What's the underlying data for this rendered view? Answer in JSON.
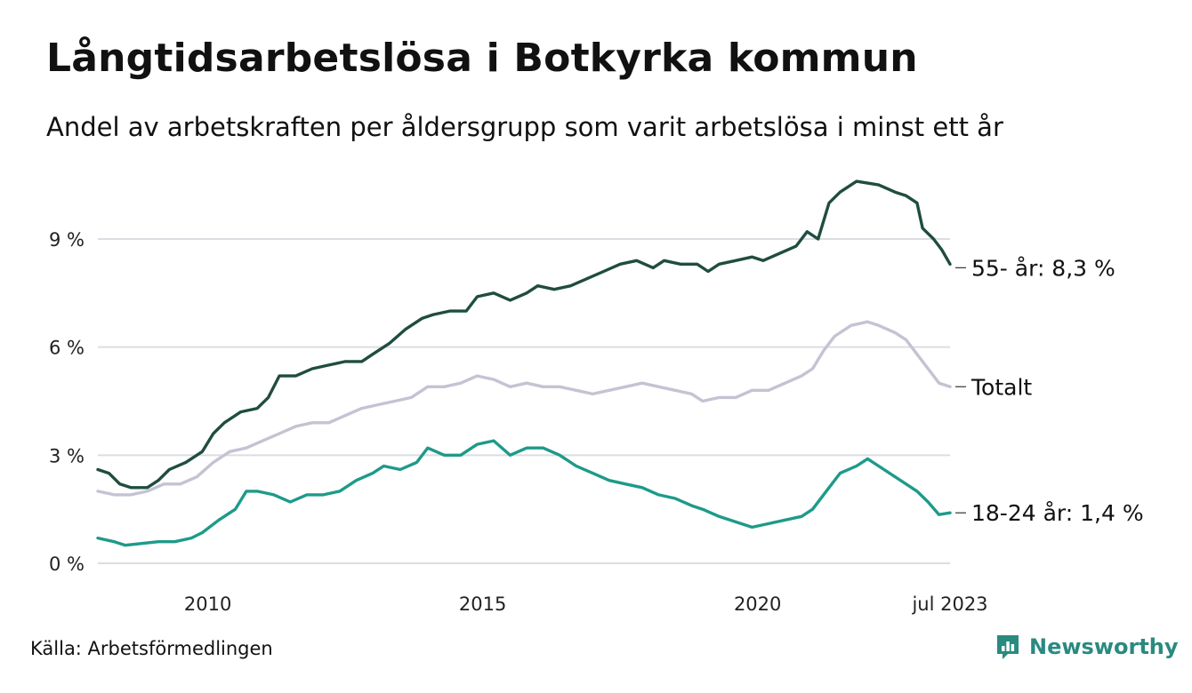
{
  "header": {
    "title": "Långtidsarbetslösa i Botkyrka kommun",
    "subtitle": "Andel av arbetskraften per åldersgrupp som varit arbetslösa i minst ett år"
  },
  "footer": {
    "source": "Källa: Arbetsförmedlingen",
    "brand": "Newsworthy",
    "brand_color": "#2a8a80"
  },
  "chart_data": {
    "type": "line",
    "x_ticks": [
      {
        "x": 2010,
        "label": "2010"
      },
      {
        "x": 2015,
        "label": "2015"
      },
      {
        "x": 2020,
        "label": "2020"
      },
      {
        "x": 2023.5,
        "label": "jul 2023"
      }
    ],
    "y_ticks": [
      {
        "y": 0,
        "label": "0 %"
      },
      {
        "y": 3,
        "label": "3 %"
      },
      {
        "y": 6,
        "label": "6 %"
      },
      {
        "y": 9,
        "label": "9 %"
      }
    ],
    "xlim": [
      2008.0,
      2023.5
    ],
    "ylim": [
      0,
      10.7
    ],
    "grid": true,
    "series": [
      {
        "name": "55- år",
        "end_label": "55- år: 8,3 %",
        "color": "#1f4d3f",
        "points": [
          [
            2008.0,
            2.6
          ],
          [
            2008.2,
            2.5
          ],
          [
            2008.4,
            2.2
          ],
          [
            2008.6,
            2.1
          ],
          [
            2008.9,
            2.1
          ],
          [
            2009.1,
            2.3
          ],
          [
            2009.3,
            2.6
          ],
          [
            2009.6,
            2.8
          ],
          [
            2009.9,
            3.1
          ],
          [
            2010.1,
            3.6
          ],
          [
            2010.3,
            3.9
          ],
          [
            2010.6,
            4.2
          ],
          [
            2010.9,
            4.3
          ],
          [
            2011.1,
            4.6
          ],
          [
            2011.3,
            5.2
          ],
          [
            2011.6,
            5.2
          ],
          [
            2011.9,
            5.4
          ],
          [
            2012.2,
            5.5
          ],
          [
            2012.5,
            5.6
          ],
          [
            2012.8,
            5.6
          ],
          [
            2013.0,
            5.8
          ],
          [
            2013.3,
            6.1
          ],
          [
            2013.6,
            6.5
          ],
          [
            2013.9,
            6.8
          ],
          [
            2014.1,
            6.9
          ],
          [
            2014.4,
            7.0
          ],
          [
            2014.7,
            7.0
          ],
          [
            2014.9,
            7.4
          ],
          [
            2015.2,
            7.5
          ],
          [
            2015.5,
            7.3
          ],
          [
            2015.8,
            7.5
          ],
          [
            2016.0,
            7.7
          ],
          [
            2016.3,
            7.6
          ],
          [
            2016.6,
            7.7
          ],
          [
            2016.9,
            7.9
          ],
          [
            2017.2,
            8.1
          ],
          [
            2017.5,
            8.3
          ],
          [
            2017.8,
            8.4
          ],
          [
            2018.1,
            8.2
          ],
          [
            2018.3,
            8.4
          ],
          [
            2018.6,
            8.3
          ],
          [
            2018.9,
            8.3
          ],
          [
            2019.1,
            8.1
          ],
          [
            2019.3,
            8.3
          ],
          [
            2019.6,
            8.4
          ],
          [
            2019.9,
            8.5
          ],
          [
            2020.1,
            8.4
          ],
          [
            2020.4,
            8.6
          ],
          [
            2020.7,
            8.8
          ],
          [
            2020.9,
            9.2
          ],
          [
            2021.1,
            9.0
          ],
          [
            2021.3,
            10.0
          ],
          [
            2021.5,
            10.3
          ],
          [
            2021.8,
            10.6
          ],
          [
            2022.0,
            10.55
          ],
          [
            2022.2,
            10.5
          ],
          [
            2022.5,
            10.3
          ],
          [
            2022.7,
            10.2
          ],
          [
            2022.9,
            10.0
          ],
          [
            2023.0,
            9.3
          ],
          [
            2023.2,
            9.0
          ],
          [
            2023.35,
            8.7
          ],
          [
            2023.5,
            8.3
          ]
        ]
      },
      {
        "name": "Totalt",
        "end_label": "Totalt",
        "color": "#c3c3d3",
        "points": [
          [
            2008.0,
            2.0
          ],
          [
            2008.3,
            1.9
          ],
          [
            2008.6,
            1.9
          ],
          [
            2008.9,
            2.0
          ],
          [
            2009.2,
            2.2
          ],
          [
            2009.5,
            2.2
          ],
          [
            2009.8,
            2.4
          ],
          [
            2010.1,
            2.8
          ],
          [
            2010.4,
            3.1
          ],
          [
            2010.7,
            3.2
          ],
          [
            2011.0,
            3.4
          ],
          [
            2011.3,
            3.6
          ],
          [
            2011.6,
            3.8
          ],
          [
            2011.9,
            3.9
          ],
          [
            2012.2,
            3.9
          ],
          [
            2012.5,
            4.1
          ],
          [
            2012.8,
            4.3
          ],
          [
            2013.1,
            4.4
          ],
          [
            2013.4,
            4.5
          ],
          [
            2013.7,
            4.6
          ],
          [
            2014.0,
            4.9
          ],
          [
            2014.3,
            4.9
          ],
          [
            2014.6,
            5.0
          ],
          [
            2014.9,
            5.2
          ],
          [
            2015.2,
            5.1
          ],
          [
            2015.5,
            4.9
          ],
          [
            2015.8,
            5.0
          ],
          [
            2016.1,
            4.9
          ],
          [
            2016.4,
            4.9
          ],
          [
            2016.7,
            4.8
          ],
          [
            2017.0,
            4.7
          ],
          [
            2017.3,
            4.8
          ],
          [
            2017.6,
            4.9
          ],
          [
            2017.9,
            5.0
          ],
          [
            2018.2,
            4.9
          ],
          [
            2018.5,
            4.8
          ],
          [
            2018.8,
            4.7
          ],
          [
            2019.0,
            4.5
          ],
          [
            2019.3,
            4.6
          ],
          [
            2019.6,
            4.6
          ],
          [
            2019.9,
            4.8
          ],
          [
            2020.2,
            4.8
          ],
          [
            2020.5,
            5.0
          ],
          [
            2020.8,
            5.2
          ],
          [
            2021.0,
            5.4
          ],
          [
            2021.2,
            5.9
          ],
          [
            2021.4,
            6.3
          ],
          [
            2021.7,
            6.6
          ],
          [
            2022.0,
            6.7
          ],
          [
            2022.2,
            6.6
          ],
          [
            2022.5,
            6.4
          ],
          [
            2022.7,
            6.2
          ],
          [
            2022.9,
            5.8
          ],
          [
            2023.1,
            5.4
          ],
          [
            2023.3,
            5.0
          ],
          [
            2023.5,
            4.9
          ]
        ]
      },
      {
        "name": "18-24 år",
        "end_label": "18-24 år: 1,4 %",
        "color": "#1e9a89",
        "points": [
          [
            2008.0,
            0.7
          ],
          [
            2008.3,
            0.6
          ],
          [
            2008.5,
            0.5
          ],
          [
            2008.8,
            0.55
          ],
          [
            2009.1,
            0.6
          ],
          [
            2009.4,
            0.6
          ],
          [
            2009.7,
            0.7
          ],
          [
            2009.9,
            0.85
          ],
          [
            2010.2,
            1.2
          ],
          [
            2010.5,
            1.5
          ],
          [
            2010.7,
            2.0
          ],
          [
            2010.9,
            2.0
          ],
          [
            2011.2,
            1.9
          ],
          [
            2011.5,
            1.7
          ],
          [
            2011.8,
            1.9
          ],
          [
            2012.1,
            1.9
          ],
          [
            2012.4,
            2.0
          ],
          [
            2012.7,
            2.3
          ],
          [
            2013.0,
            2.5
          ],
          [
            2013.2,
            2.7
          ],
          [
            2013.5,
            2.6
          ],
          [
            2013.8,
            2.8
          ],
          [
            2014.0,
            3.2
          ],
          [
            2014.3,
            3.0
          ],
          [
            2014.6,
            3.0
          ],
          [
            2014.9,
            3.3
          ],
          [
            2015.2,
            3.4
          ],
          [
            2015.5,
            3.0
          ],
          [
            2015.8,
            3.2
          ],
          [
            2016.1,
            3.2
          ],
          [
            2016.4,
            3.0
          ],
          [
            2016.7,
            2.7
          ],
          [
            2017.0,
            2.5
          ],
          [
            2017.3,
            2.3
          ],
          [
            2017.6,
            2.2
          ],
          [
            2017.9,
            2.1
          ],
          [
            2018.2,
            1.9
          ],
          [
            2018.5,
            1.8
          ],
          [
            2018.8,
            1.6
          ],
          [
            2019.0,
            1.5
          ],
          [
            2019.3,
            1.3
          ],
          [
            2019.6,
            1.15
          ],
          [
            2019.9,
            1.0
          ],
          [
            2020.2,
            1.1
          ],
          [
            2020.5,
            1.2
          ],
          [
            2020.8,
            1.3
          ],
          [
            2021.0,
            1.5
          ],
          [
            2021.3,
            2.1
          ],
          [
            2021.5,
            2.5
          ],
          [
            2021.8,
            2.7
          ],
          [
            2022.0,
            2.9
          ],
          [
            2022.2,
            2.7
          ],
          [
            2022.5,
            2.4
          ],
          [
            2022.7,
            2.2
          ],
          [
            2022.9,
            2.0
          ],
          [
            2023.1,
            1.7
          ],
          [
            2023.3,
            1.35
          ],
          [
            2023.5,
            1.4
          ]
        ]
      }
    ]
  }
}
